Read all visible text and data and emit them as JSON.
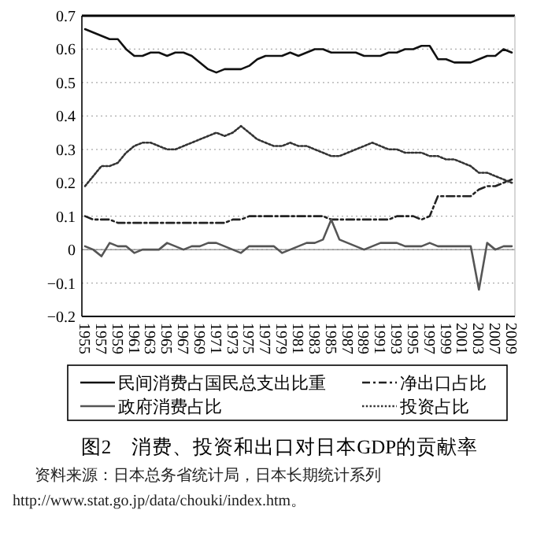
{
  "chart_data": {
    "type": "line",
    "title": "图2　消费、投资和出口对日本GDP的贡献率",
    "annotations": [
      "资料来源：日本总务省统计局，日本长期统计系列 http://www.stat.go.jp/data/chouki/index.htm。"
    ],
    "categories": [
      "1955",
      null,
      "1957",
      null,
      "1959",
      null,
      "1961",
      null,
      "1963",
      null,
      "1965",
      null,
      "1967",
      null,
      "1969",
      null,
      "1971",
      null,
      "1973",
      null,
      "1975",
      null,
      "1977",
      null,
      "1979",
      null,
      "1981",
      null,
      "1983",
      null,
      "1985",
      null,
      "1987",
      null,
      "1989",
      null,
      "1991",
      null,
      "1993",
      null,
      "1995",
      null,
      "1997",
      null,
      "1999",
      null,
      "2001",
      null,
      "2003",
      null,
      "2007",
      null,
      "2009"
    ],
    "series": [
      {
        "name": "民间消费占国民总支出比重",
        "color": "#111111",
        "line_style": "solid",
        "values": [
          0.66,
          0.65,
          0.64,
          0.63,
          0.63,
          0.6,
          0.58,
          0.58,
          0.59,
          0.59,
          0.58,
          0.59,
          0.59,
          0.58,
          0.56,
          0.54,
          0.53,
          0.54,
          0.54,
          0.54,
          0.55,
          0.57,
          0.58,
          0.58,
          0.58,
          0.59,
          0.58,
          0.59,
          0.6,
          0.6,
          0.59,
          0.59,
          0.59,
          0.59,
          0.58,
          0.58,
          0.58,
          0.59,
          0.59,
          0.6,
          0.6,
          0.61,
          0.61,
          0.57,
          0.57,
          0.56,
          0.56,
          0.56,
          0.57,
          0.58,
          0.58,
          0.6,
          0.59
        ]
      },
      {
        "name": "净出口占比",
        "color": "#222222",
        "line_style": "dashdot",
        "values": [
          0.1,
          0.09,
          0.09,
          0.09,
          0.08,
          0.08,
          0.08,
          0.08,
          0.08,
          0.08,
          0.08,
          0.08,
          0.08,
          0.08,
          0.08,
          0.08,
          0.08,
          0.08,
          0.09,
          0.09,
          0.1,
          0.1,
          0.1,
          0.1,
          0.1,
          0.1,
          0.1,
          0.1,
          0.1,
          0.1,
          0.09,
          0.09,
          0.09,
          0.09,
          0.09,
          0.09,
          0.09,
          0.09,
          0.1,
          0.1,
          0.1,
          0.09,
          0.1,
          0.16,
          0.16,
          0.16,
          0.16,
          0.16,
          0.18,
          0.19,
          0.19,
          0.2,
          0.21
        ]
      },
      {
        "name": "政府消费占比",
        "color": "#555555",
        "line_style": "solid",
        "values": [
          0.01,
          0.0,
          -0.02,
          0.02,
          0.01,
          0.01,
          -0.01,
          0.0,
          0.0,
          0.0,
          0.02,
          0.01,
          0.0,
          0.01,
          0.01,
          0.02,
          0.02,
          0.01,
          0.0,
          -0.01,
          0.01,
          0.01,
          0.01,
          0.01,
          -0.01,
          0.0,
          0.01,
          0.02,
          0.02,
          0.03,
          0.09,
          0.03,
          0.02,
          0.01,
          0.0,
          0.01,
          0.02,
          0.02,
          0.02,
          0.01,
          0.01,
          0.01,
          0.02,
          0.01,
          0.01,
          0.01,
          0.01,
          0.01,
          -0.12,
          0.02,
          0.0,
          0.01,
          0.01
        ]
      },
      {
        "name": "投资占比",
        "color": "#333333",
        "line_style": "dotted",
        "values": [
          0.19,
          0.22,
          0.25,
          0.25,
          0.26,
          0.29,
          0.31,
          0.32,
          0.32,
          0.31,
          0.3,
          0.3,
          0.31,
          0.32,
          0.33,
          0.34,
          0.35,
          0.34,
          0.35,
          0.37,
          0.35,
          0.33,
          0.32,
          0.31,
          0.31,
          0.32,
          0.31,
          0.31,
          0.3,
          0.29,
          0.28,
          0.28,
          0.29,
          0.3,
          0.31,
          0.32,
          0.31,
          0.3,
          0.3,
          0.29,
          0.29,
          0.29,
          0.28,
          0.28,
          0.27,
          0.27,
          0.26,
          0.25,
          0.23,
          0.23,
          0.22,
          0.21,
          0.2
        ]
      }
    ],
    "ylim": [
      -0.2,
      0.7
    ],
    "yticks": [
      {
        "value": -0.2,
        "label": "−0.2"
      },
      {
        "value": -0.1,
        "label": "−0.1"
      },
      0,
      0.1,
      0.2,
      0.3,
      0.4,
      0.5,
      0.6,
      0.7
    ],
    "grid": "y",
    "legend": "bottom",
    "marker": "none"
  }
}
